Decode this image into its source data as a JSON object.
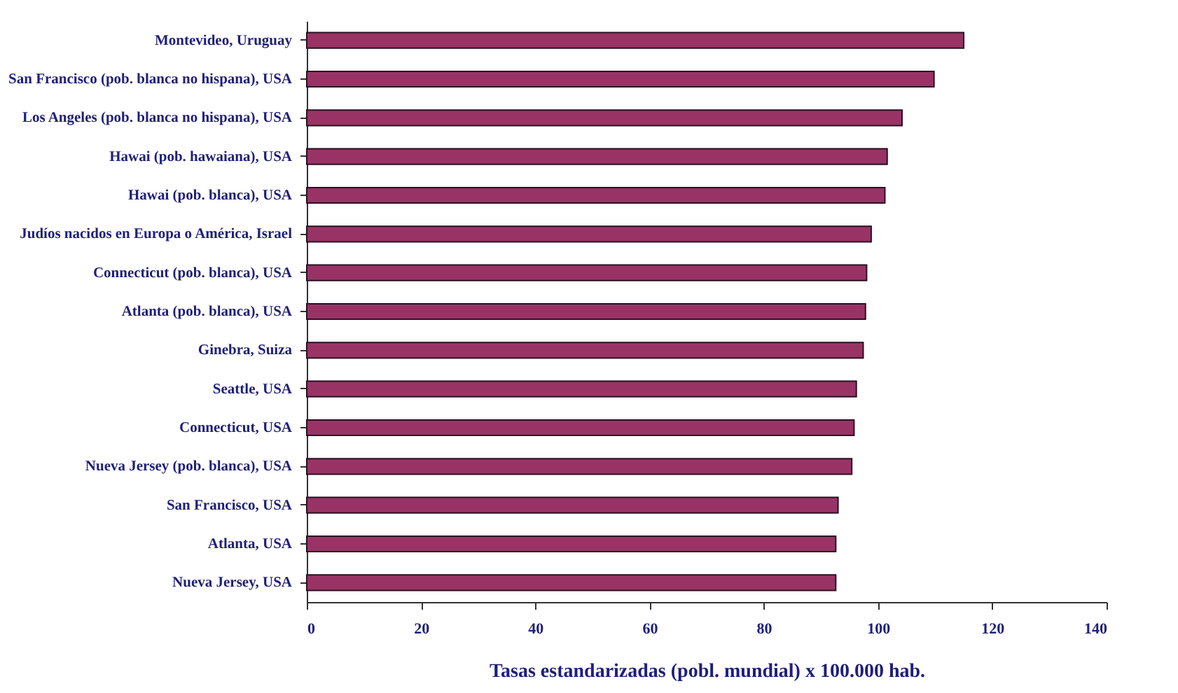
{
  "chart_data": {
    "type": "bar",
    "orientation": "horizontal",
    "xlabel": "Tasas estandarizadas (pobl. mundial) x 100.000 hab.",
    "categories": [
      "Montevideo, Uruguay",
      "San Francisco (pob. blanca no hispana), USA",
      "Los Angeles (pob. blanca no hispana), USA",
      "Hawai (pob. hawaiana), USA",
      "Hawai (pob. blanca), USA",
      "Judíos nacidos en Europa o América, Israel",
      "Connecticut (pob. blanca), USA",
      "Atlanta (pob. blanca), USA",
      "Ginebra, Suiza",
      "Seattle, USA",
      "Connecticut, USA",
      "Nueva Jersey (pob. blanca), USA",
      "San Francisco, USA",
      "Atlanta, USA",
      "Nueva Jersey, USA"
    ],
    "values": [
      115.0,
      109.8,
      104.2,
      101.6,
      101.2,
      98.8,
      98.0,
      97.8,
      97.4,
      96.2,
      95.8,
      95.4,
      93.0,
      92.6,
      92.6
    ],
    "color": "#993366",
    "xlim": [
      0,
      140
    ],
    "xticks": [
      0,
      20,
      40,
      60,
      80,
      100,
      120,
      140
    ],
    "grid": false
  }
}
